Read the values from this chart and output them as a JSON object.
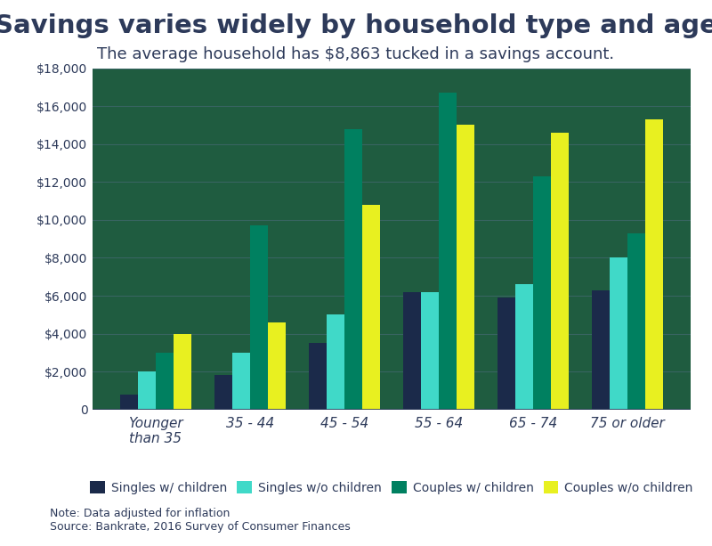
{
  "title": "Savings varies widely by household type and age",
  "subtitle": "The average household has $8,863 tucked in a savings account.",
  "categories": [
    "Younger\nthan 35",
    "35 - 44",
    "45 - 54",
    "55 - 64",
    "65 - 74",
    "75 or older"
  ],
  "series": {
    "Singles w/ children": [
      800,
      1800,
      3500,
      6200,
      5900,
      6300
    ],
    "Singles w/o children": [
      2000,
      3000,
      5000,
      6200,
      6600,
      8000
    ],
    "Couples w/ children": [
      3000,
      9700,
      14800,
      16700,
      12300,
      9300
    ],
    "Couples w/o children": [
      4000,
      4600,
      10800,
      15000,
      14600,
      15300
    ]
  },
  "colors": {
    "Singles w/ children": "#1b2a4a",
    "Singles w/o children": "#40d9c8",
    "Couples w/ children": "#008060",
    "Couples w/o children": "#e8f020"
  },
  "ylim": [
    0,
    18000
  ],
  "yticks": [
    0,
    2000,
    4000,
    6000,
    8000,
    10000,
    12000,
    14000,
    16000,
    18000
  ],
  "figure_bg": "#ffffff",
  "plot_bg": "#1f5c40",
  "grid_color": "#4a6a7a",
  "note": "Note: Data adjusted for inflation\nSource: Bankrate, 2016 Survey of Consumer Finances",
  "bar_width": 0.19,
  "legend_fontsize": 10,
  "title_fontsize": 21,
  "subtitle_fontsize": 13,
  "tick_color": "#2d3a5a",
  "axis_label_color": "#2d3a5a"
}
